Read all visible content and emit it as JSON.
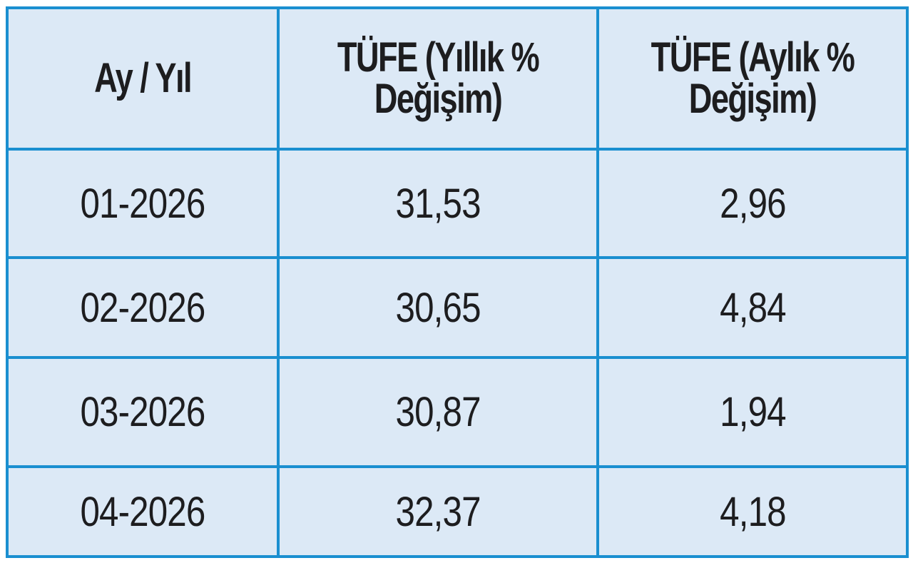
{
  "table": {
    "headers": [
      "Ay / Yıl",
      "TÜFE (Yıllık % Değişim)",
      "TÜFE (Aylık % Değişim)"
    ],
    "rows": [
      [
        "01-2026",
        "31,53",
        "2,96"
      ],
      [
        "02-2026",
        "30,65",
        "4,84"
      ],
      [
        "03-2026",
        "30,87",
        "1,94"
      ],
      [
        "04-2026",
        "32,37",
        "4,18"
      ]
    ]
  },
  "chart_data": {
    "type": "table",
    "columns": [
      "Ay / Yıl",
      "TÜFE (Yıllık % Değişim)",
      "TÜFE (Aylık % Değişim)"
    ],
    "rows": [
      [
        "01-2026",
        31.53,
        2.96
      ],
      [
        "02-2026",
        30.65,
        4.84
      ],
      [
        "03-2026",
        30.87,
        1.94
      ],
      [
        "04-2026",
        32.37,
        4.18
      ]
    ]
  },
  "colors": {
    "border": "#1a8fd0",
    "cell_background": "#dce9f6",
    "text": "#1d1d1f"
  }
}
